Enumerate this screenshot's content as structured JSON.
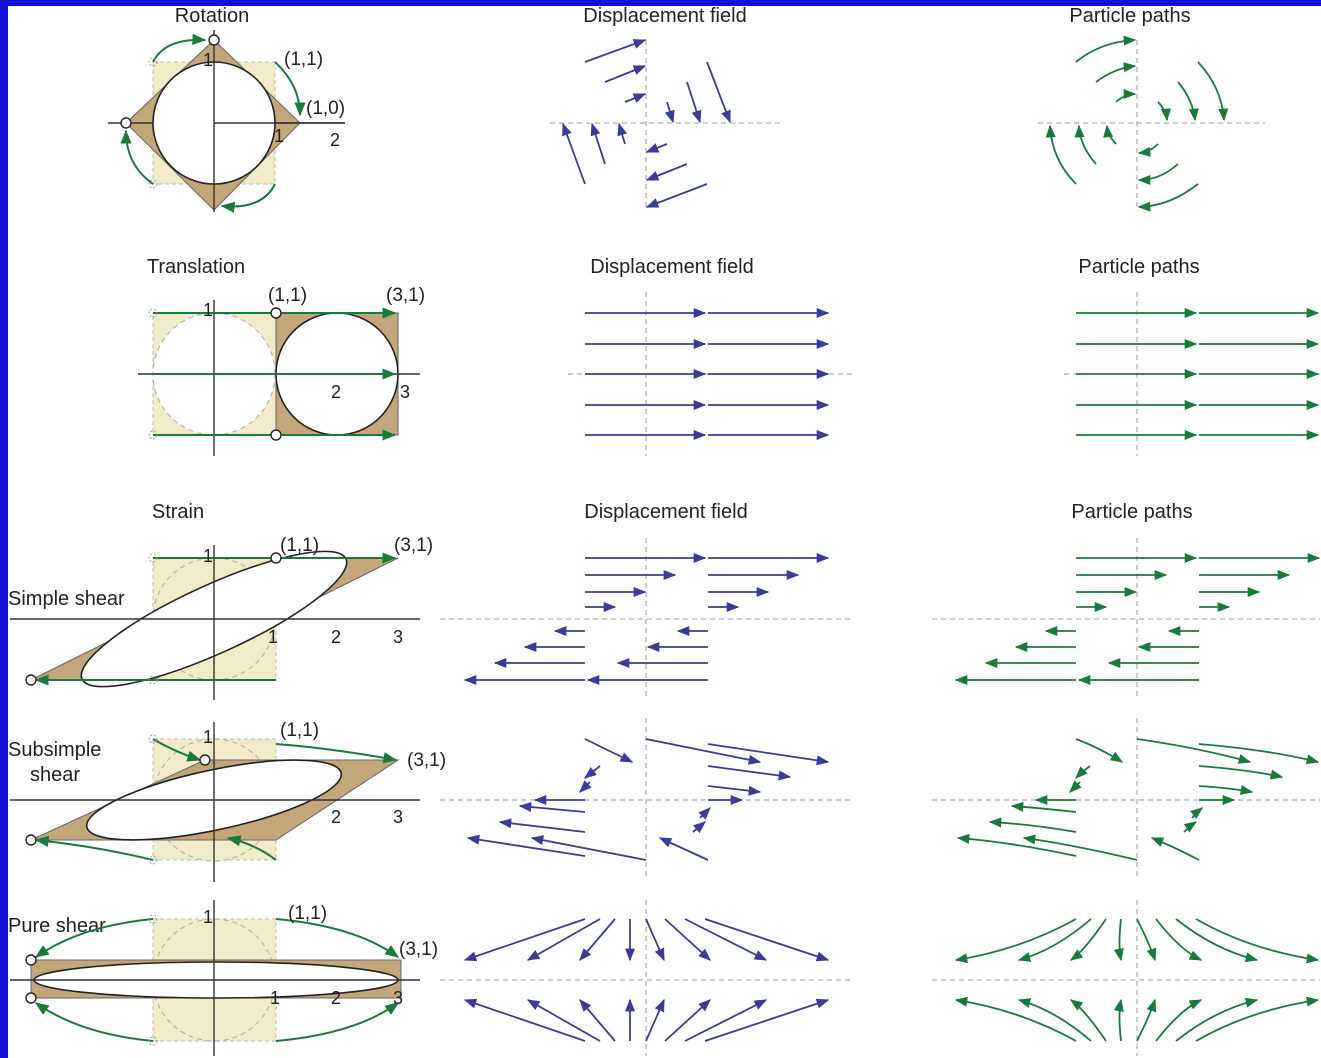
{
  "colors": {
    "frame": "#1010d8",
    "deformed_fill": "#c3a679",
    "undeformed_fill": "#f1ebc8",
    "arrow_green": "#1a7a3c",
    "arrow_purple": "#3b3b98",
    "axis": "#333333",
    "dashed": "#999999"
  },
  "rows": [
    {
      "id": "rotation",
      "titles": {
        "shape": "Rotation",
        "displacement": "Displacement field",
        "paths": "Particle paths"
      },
      "labels": {
        "p1": "(1,1)",
        "p2": "(1,0)"
      },
      "ticks": {
        "one_x": "1",
        "one_y": "1",
        "two_x": "2"
      }
    },
    {
      "id": "translation",
      "titles": {
        "shape": "Translation",
        "displacement": "Displacement field",
        "paths": "Particle paths"
      },
      "labels": {
        "p1": "(1,1)",
        "p2": "(3,1)"
      },
      "ticks": {
        "one_y": "1",
        "two_x": "2",
        "three_x": "3"
      }
    },
    {
      "id": "simple-shear",
      "titles": {
        "group": "Strain",
        "shape": "Simple shear",
        "displacement": "Displacement field",
        "paths": "Particle paths"
      },
      "labels": {
        "p1": "(1,1)",
        "p2": "(3,1)"
      },
      "ticks": {
        "one_x": "1",
        "one_y": "1",
        "two_x": "2",
        "three_x": "3"
      }
    },
    {
      "id": "subsimple-shear",
      "titles": {
        "shape_line1": "Subsimple",
        "shape_line2": "shear"
      },
      "labels": {
        "p1": "(1,1)",
        "p2": "(3,1)"
      },
      "ticks": {
        "one_y": "1",
        "two_x": "2",
        "three_x": "3"
      }
    },
    {
      "id": "pure-shear",
      "titles": {
        "shape": "Pure shear"
      },
      "labels": {
        "p1": "(1,1)",
        "p2": "(3,1)"
      },
      "ticks": {
        "one_x": "1",
        "one_y": "1",
        "two_x": "2",
        "three_x": "3"
      }
    }
  ]
}
